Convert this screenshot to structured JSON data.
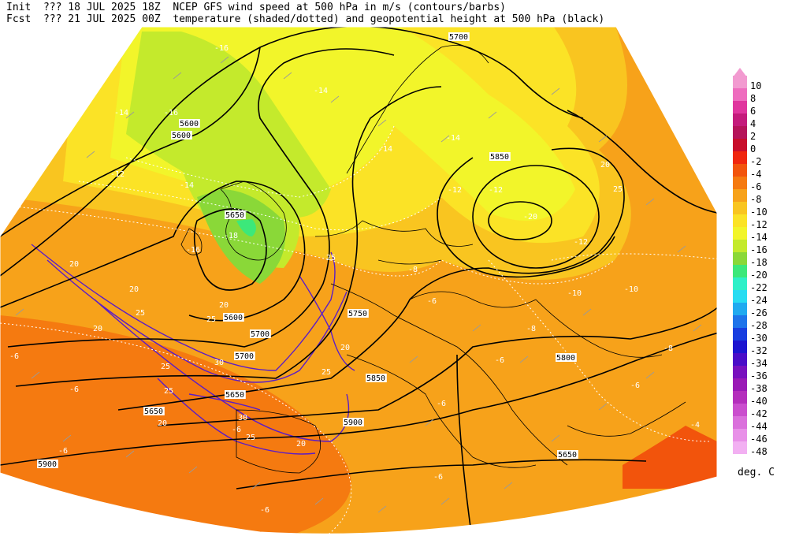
{
  "header": {
    "init_label": "Init",
    "init_value": "??? 18 JUL 2025 18Z",
    "fcst_label": "Fcst",
    "fcst_value": "??? 21 JUL 2025 00Z",
    "model_title": "NCEP GFS wind speed at 500 hPa in m/s (contours/barbs)",
    "subtitle": "temperature (shaded/dotted) and geopotential height at 500 hPa (black)"
  },
  "legend": {
    "units": "deg. C",
    "levels": [
      {
        "label": "10",
        "color": "#f29ad0"
      },
      {
        "label": "8",
        "color": "#ee6cbe"
      },
      {
        "label": "6",
        "color": "#e0359e"
      },
      {
        "label": "4",
        "color": "#c41b7c"
      },
      {
        "label": "2",
        "color": "#b5145a"
      },
      {
        "label": "0",
        "color": "#c80e2b"
      },
      {
        "label": "-2",
        "color": "#f0260e"
      },
      {
        "label": "-4",
        "color": "#f2540c"
      },
      {
        "label": "-6",
        "color": "#f57a10"
      },
      {
        "label": "-8",
        "color": "#f7a21a"
      },
      {
        "label": "-10",
        "color": "#f9c520"
      },
      {
        "label": "-12",
        "color": "#fbe326"
      },
      {
        "label": "-14",
        "color": "#f2f52a"
      },
      {
        "label": "-16",
        "color": "#c4ea2c"
      },
      {
        "label": "-18",
        "color": "#8ad838"
      },
      {
        "label": "-20",
        "color": "#3ce87a"
      },
      {
        "label": "-22",
        "color": "#2ef0c8"
      },
      {
        "label": "-24",
        "color": "#28dcf2"
      },
      {
        "label": "-26",
        "color": "#20aaf0"
      },
      {
        "label": "-28",
        "color": "#1e74ea"
      },
      {
        "label": "-30",
        "color": "#183ee0"
      },
      {
        "label": "-32",
        "color": "#1c14d0"
      },
      {
        "label": "-34",
        "color": "#4a0cc8"
      },
      {
        "label": "-36",
        "color": "#7810be"
      },
      {
        "label": "-38",
        "color": "#9a1ab6"
      },
      {
        "label": "-40",
        "color": "#b42ebc"
      },
      {
        "label": "-42",
        "color": "#ca4ece"
      },
      {
        "label": "-44",
        "color": "#da70dc"
      },
      {
        "label": "-46",
        "color": "#e890e8"
      },
      {
        "label": "-48",
        "color": "#f2b0f2"
      }
    ]
  },
  "map": {
    "height_labels": [
      "5700",
      "5600",
      "5600",
      "5650",
      "5700",
      "5600",
      "5650",
      "5700",
      "5750",
      "5800",
      "5650",
      "5650",
      "5850",
      "5900",
      "5900",
      "5850"
    ],
    "temp_labels": [
      "-16",
      "-14",
      "-14",
      "-16",
      "-12",
      "-14",
      "-16",
      "-18",
      "-14",
      "-14",
      "-12",
      "-12",
      "-20",
      "-12",
      "-10",
      "-10",
      "-8",
      "-6",
      "-8",
      "-6",
      "-8",
      "-6",
      "-4",
      "-6",
      "-6",
      "-6",
      "-6",
      "-6",
      "-6",
      "-6"
    ],
    "wind_labels": [
      "20",
      "20",
      "20",
      "25",
      "20",
      "25",
      "25",
      "30",
      "25",
      "25",
      "30",
      "20",
      "25",
      "20",
      "20",
      "20",
      "25",
      "25"
    ]
  }
}
